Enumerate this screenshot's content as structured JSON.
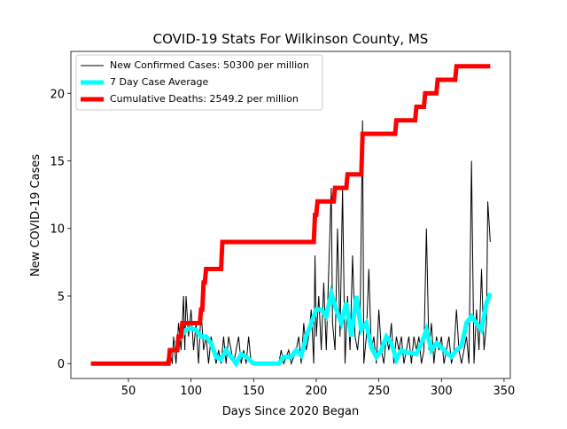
{
  "chart_data": {
    "type": "line",
    "title": "COVID-19 Stats For Wilkinson County, MS",
    "xlabel": "Days Since 2020 Began",
    "ylabel": "New COVID-19 Cases",
    "xlim": [
      4,
      355
    ],
    "ylim": [
      -1.1,
      23.1
    ],
    "xticks": [
      50,
      100,
      150,
      200,
      250,
      300,
      350
    ],
    "yticks": [
      0,
      5,
      10,
      15,
      20
    ],
    "legend": "upper left",
    "series": [
      {
        "name": "New Confirmed Cases: 50300 per million",
        "color": "#000000",
        "x": [
          20,
          80,
          83,
          85,
          86,
          88,
          90,
          92,
          94,
          95,
          96,
          98,
          100,
          102,
          104,
          106,
          108,
          110,
          112,
          114,
          116,
          118,
          120,
          122,
          124,
          126,
          128,
          130,
          132,
          134,
          136,
          138,
          140,
          142,
          144,
          146,
          148,
          150,
          170,
          172,
          174,
          178,
          180,
          184,
          186,
          188,
          190,
          192,
          194,
          196,
          198,
          199,
          200,
          202,
          204,
          206,
          208,
          210,
          212,
          213,
          215,
          217,
          219,
          221,
          223,
          225,
          227,
          229,
          231,
          233,
          235,
          237,
          238,
          240,
          242,
          244,
          246,
          248,
          250,
          252,
          254,
          256,
          258,
          260,
          262,
          264,
          266,
          268,
          270,
          272,
          274,
          276,
          278,
          280,
          282,
          284,
          286,
          288,
          290,
          292,
          294,
          296,
          298,
          300,
          302,
          304,
          306,
          308,
          310,
          312,
          314,
          316,
          318,
          320,
          322,
          324,
          326,
          328,
          330,
          332,
          334,
          336,
          337,
          339
        ],
        "values": [
          0,
          0,
          1,
          0,
          2,
          0,
          3,
          1,
          5,
          1,
          5,
          2,
          4,
          1,
          3,
          0,
          4,
          1,
          2,
          0,
          2,
          1,
          0,
          1,
          0,
          2,
          0,
          2,
          1,
          0,
          1,
          2,
          0,
          1,
          0,
          2,
          0,
          0,
          0,
          1,
          0,
          1,
          0,
          1,
          2,
          0,
          3,
          1,
          2,
          4,
          0,
          8,
          2,
          5,
          1,
          6,
          1,
          7,
          13,
          3,
          1,
          10,
          2,
          13,
          0,
          5,
          1,
          8,
          2,
          1,
          3,
          18,
          0,
          2,
          7,
          1,
          2,
          0,
          4,
          1,
          0,
          2,
          1,
          3,
          0,
          2,
          1,
          2,
          0,
          1,
          2,
          0,
          2,
          1,
          2,
          0,
          1,
          10,
          1,
          3,
          0,
          2,
          1,
          2,
          0,
          1,
          2,
          0,
          1,
          4,
          1,
          0,
          1,
          2,
          0,
          15,
          0,
          4,
          1,
          7,
          1,
          3,
          12,
          9
        ]
      },
      {
        "name": "7 Day Case Average",
        "color": "#00ffff",
        "x": [
          88,
          92,
          96,
          100,
          104,
          108,
          112,
          116,
          120,
          124,
          128,
          132,
          136,
          140,
          144,
          150,
          170,
          174,
          180,
          184,
          188,
          192,
          196,
          200,
          204,
          208,
          212,
          216,
          220,
          224,
          228,
          232,
          236,
          240,
          244,
          248,
          252,
          256,
          260,
          264,
          268,
          272,
          276,
          280,
          284,
          288,
          292,
          296,
          300,
          304,
          308,
          312,
          316,
          320,
          324,
          328,
          332,
          336,
          339
        ],
        "values": [
          1.5,
          2,
          2.5,
          2.6,
          2.5,
          2,
          2,
          1.5,
          0.5,
          0.3,
          1,
          0.5,
          0,
          0.7,
          0.5,
          0,
          0,
          0.5,
          0.5,
          1,
          0.6,
          2,
          3,
          4,
          4,
          3.5,
          5.2,
          4,
          3,
          4.5,
          2,
          5,
          2.5,
          3,
          1.2,
          0.5,
          1,
          2,
          1.5,
          0.3,
          1,
          0.8,
          0.8,
          0.7,
          1.5,
          2.5,
          1,
          1.5,
          1.2,
          0.8,
          0.5,
          1,
          1.3,
          3,
          3.5,
          3,
          2.5,
          4.5,
          5.2
        ]
      },
      {
        "name": "Cumulative Deaths: 2549.2 per million",
        "color": "#ff0000",
        "x": [
          20,
          82,
          83,
          89,
          90,
          92,
          93,
          107,
          108,
          109,
          110,
          111,
          112,
          124,
          125,
          198,
          199,
          200,
          201,
          214,
          215,
          224,
          225,
          236,
          237,
          263,
          264,
          279,
          280,
          286,
          287,
          296,
          297,
          311,
          312,
          339
        ],
        "values": [
          0,
          0,
          1,
          1,
          2,
          2,
          3,
          3,
          4,
          4,
          6,
          6,
          7,
          7,
          9,
          9,
          11,
          11,
          12,
          12,
          13,
          13,
          14,
          14,
          17,
          17,
          18,
          18,
          19,
          19,
          20,
          20,
          21,
          21,
          22,
          22
        ]
      }
    ]
  }
}
